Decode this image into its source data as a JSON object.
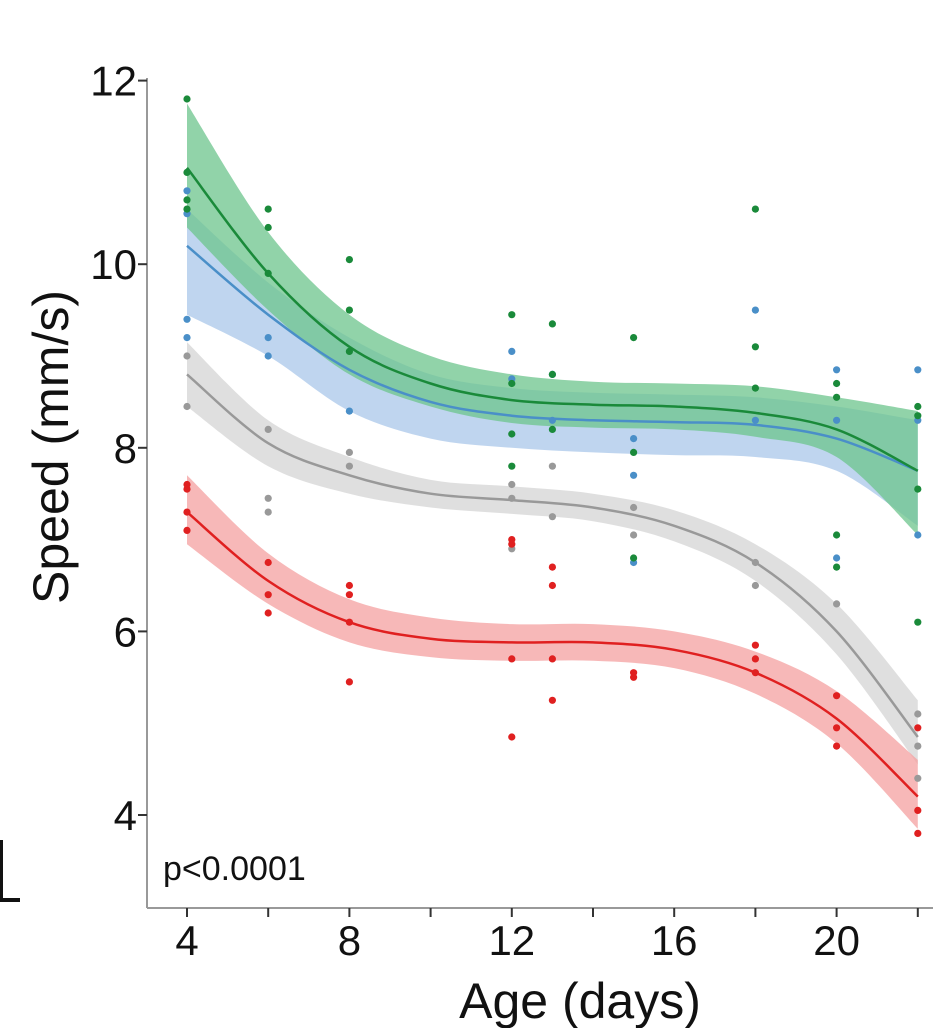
{
  "chart_data": {
    "type": "scatter",
    "title": "",
    "xlabel": "Age (days)",
    "ylabel": "Speed (mm/s)",
    "xlim": [
      3.3,
      22.4
    ],
    "ylim": [
      3.0,
      12.2
    ],
    "xticks": [
      4,
      8,
      12,
      16,
      20
    ],
    "xminor": [
      6,
      10,
      14,
      18,
      22
    ],
    "yticks": [
      4,
      6,
      8,
      10,
      12
    ],
    "annotation": "p<0.0001",
    "grid": false,
    "series": [
      {
        "name": "green",
        "color": "#1a8a3a",
        "band_color": "#6cc48c",
        "points": [
          [
            4,
            11.8
          ],
          [
            4,
            11.0
          ],
          [
            4,
            10.6
          ],
          [
            4,
            10.7
          ],
          [
            6,
            10.6
          ],
          [
            6,
            10.4
          ],
          [
            6,
            9.9
          ],
          [
            8,
            10.05
          ],
          [
            8,
            9.5
          ],
          [
            8,
            9.05
          ],
          [
            12,
            9.45
          ],
          [
            12,
            8.7
          ],
          [
            12,
            8.15
          ],
          [
            12,
            7.8
          ],
          [
            13,
            9.35
          ],
          [
            13,
            8.8
          ],
          [
            13,
            8.2
          ],
          [
            15,
            9.2
          ],
          [
            15,
            7.95
          ],
          [
            15,
            6.8
          ],
          [
            18,
            10.6
          ],
          [
            18,
            9.1
          ],
          [
            18,
            8.65
          ],
          [
            20,
            8.7
          ],
          [
            20,
            8.55
          ],
          [
            20,
            7.05
          ],
          [
            20,
            6.7
          ],
          [
            22,
            8.45
          ],
          [
            22,
            8.35
          ],
          [
            22,
            7.55
          ],
          [
            22,
            6.1
          ]
        ],
        "fit": [
          [
            4,
            11.05
          ],
          [
            6,
            9.9
          ],
          [
            8,
            9.1
          ],
          [
            10,
            8.7
          ],
          [
            12,
            8.52
          ],
          [
            14,
            8.47
          ],
          [
            16,
            8.45
          ],
          [
            18,
            8.38
          ],
          [
            20,
            8.2
          ],
          [
            22,
            7.75
          ]
        ],
        "band_upper": [
          [
            4,
            11.75
          ],
          [
            6,
            10.35
          ],
          [
            8,
            9.45
          ],
          [
            10,
            9.0
          ],
          [
            12,
            8.8
          ],
          [
            14,
            8.72
          ],
          [
            16,
            8.7
          ],
          [
            18,
            8.67
          ],
          [
            20,
            8.55
          ],
          [
            22,
            8.4
          ]
        ],
        "band_lower": [
          [
            4,
            10.4
          ],
          [
            6,
            9.5
          ],
          [
            8,
            8.8
          ],
          [
            10,
            8.45
          ],
          [
            12,
            8.27
          ],
          [
            14,
            8.22
          ],
          [
            16,
            8.2
          ],
          [
            18,
            8.12
          ],
          [
            20,
            7.9
          ],
          [
            22,
            7.05
          ]
        ]
      },
      {
        "name": "blue",
        "color": "#4a8fc8",
        "band_color": "#a9c7ea",
        "points": [
          [
            4,
            10.8
          ],
          [
            4,
            10.55
          ],
          [
            4,
            9.4
          ],
          [
            4,
            9.2
          ],
          [
            6,
            9.2
          ],
          [
            6,
            9.0
          ],
          [
            8,
            8.4
          ],
          [
            12,
            9.05
          ],
          [
            12,
            8.75
          ],
          [
            13,
            8.8
          ],
          [
            13,
            8.3
          ],
          [
            15,
            8.1
          ],
          [
            15,
            7.7
          ],
          [
            15,
            6.75
          ],
          [
            18,
            9.5
          ],
          [
            18,
            8.3
          ],
          [
            20,
            8.85
          ],
          [
            20,
            8.3
          ],
          [
            20,
            6.8
          ],
          [
            22,
            8.85
          ],
          [
            22,
            8.3
          ],
          [
            22,
            7.05
          ]
        ],
        "fit": [
          [
            4,
            10.2
          ],
          [
            6,
            9.45
          ],
          [
            8,
            8.85
          ],
          [
            10,
            8.5
          ],
          [
            12,
            8.35
          ],
          [
            14,
            8.3
          ],
          [
            16,
            8.28
          ],
          [
            18,
            8.25
          ],
          [
            20,
            8.1
          ],
          [
            22,
            7.75
          ]
        ],
        "band_upper": [
          [
            4,
            10.6
          ],
          [
            6,
            9.8
          ],
          [
            8,
            9.2
          ],
          [
            10,
            8.8
          ],
          [
            12,
            8.65
          ],
          [
            14,
            8.6
          ],
          [
            16,
            8.58
          ],
          [
            18,
            8.55
          ],
          [
            20,
            8.45
          ],
          [
            22,
            8.3
          ]
        ],
        "band_lower": [
          [
            4,
            9.45
          ],
          [
            6,
            9.0
          ],
          [
            8,
            8.4
          ],
          [
            10,
            8.1
          ],
          [
            12,
            8.0
          ],
          [
            14,
            7.95
          ],
          [
            16,
            7.92
          ],
          [
            18,
            7.9
          ],
          [
            20,
            7.75
          ],
          [
            22,
            7.15
          ]
        ]
      },
      {
        "name": "gray",
        "color": "#999999",
        "band_color": "#d4d4d4",
        "points": [
          [
            4,
            9.0
          ],
          [
            4,
            8.45
          ],
          [
            6,
            8.2
          ],
          [
            6,
            7.45
          ],
          [
            6,
            7.3
          ],
          [
            8,
            7.95
          ],
          [
            8,
            7.8
          ],
          [
            12,
            7.6
          ],
          [
            12,
            7.45
          ],
          [
            12,
            6.9
          ],
          [
            13,
            7.8
          ],
          [
            13,
            7.25
          ],
          [
            15,
            7.35
          ],
          [
            15,
            7.05
          ],
          [
            18,
            6.75
          ],
          [
            18,
            6.5
          ],
          [
            20,
            6.3
          ],
          [
            22,
            5.1
          ],
          [
            22,
            4.75
          ],
          [
            22,
            4.4
          ]
        ],
        "fit": [
          [
            4,
            8.8
          ],
          [
            6,
            8.05
          ],
          [
            8,
            7.7
          ],
          [
            10,
            7.5
          ],
          [
            12,
            7.43
          ],
          [
            14,
            7.35
          ],
          [
            16,
            7.15
          ],
          [
            18,
            6.75
          ],
          [
            20,
            6.0
          ],
          [
            22,
            4.85
          ]
        ],
        "band_upper": [
          [
            4,
            9.15
          ],
          [
            6,
            8.3
          ],
          [
            8,
            7.9
          ],
          [
            10,
            7.65
          ],
          [
            12,
            7.58
          ],
          [
            14,
            7.5
          ],
          [
            16,
            7.32
          ],
          [
            18,
            6.95
          ],
          [
            20,
            6.3
          ],
          [
            22,
            5.25
          ]
        ],
        "band_lower": [
          [
            4,
            8.45
          ],
          [
            6,
            7.8
          ],
          [
            8,
            7.5
          ],
          [
            10,
            7.35
          ],
          [
            12,
            7.28
          ],
          [
            14,
            7.2
          ],
          [
            16,
            6.98
          ],
          [
            18,
            6.55
          ],
          [
            20,
            5.75
          ],
          [
            22,
            4.55
          ]
        ]
      },
      {
        "name": "red",
        "color": "#e02020",
        "band_color": "#f4a0a0",
        "points": [
          [
            4,
            7.6
          ],
          [
            4,
            7.55
          ],
          [
            4,
            7.3
          ],
          [
            4,
            7.1
          ],
          [
            6,
            6.75
          ],
          [
            6,
            6.4
          ],
          [
            6,
            6.2
          ],
          [
            8,
            6.5
          ],
          [
            8,
            6.4
          ],
          [
            8,
            6.1
          ],
          [
            8,
            5.45
          ],
          [
            12,
            7.0
          ],
          [
            12,
            6.95
          ],
          [
            12,
            5.7
          ],
          [
            12,
            4.85
          ],
          [
            13,
            6.7
          ],
          [
            13,
            6.5
          ],
          [
            13,
            5.7
          ],
          [
            13,
            5.25
          ],
          [
            15,
            5.55
          ],
          [
            15,
            5.5
          ],
          [
            18,
            5.85
          ],
          [
            18,
            5.7
          ],
          [
            18,
            5.55
          ],
          [
            20,
            5.3
          ],
          [
            20,
            4.95
          ],
          [
            20,
            4.75
          ],
          [
            22,
            4.95
          ],
          [
            22,
            4.05
          ],
          [
            22,
            3.8
          ]
        ],
        "fit": [
          [
            4,
            7.3
          ],
          [
            6,
            6.55
          ],
          [
            8,
            6.1
          ],
          [
            10,
            5.92
          ],
          [
            12,
            5.88
          ],
          [
            14,
            5.88
          ],
          [
            16,
            5.8
          ],
          [
            18,
            5.55
          ],
          [
            20,
            5.05
          ],
          [
            22,
            4.2
          ]
        ],
        "band_upper": [
          [
            4,
            7.7
          ],
          [
            6,
            6.85
          ],
          [
            8,
            6.35
          ],
          [
            10,
            6.15
          ],
          [
            12,
            6.08
          ],
          [
            14,
            6.08
          ],
          [
            16,
            6.0
          ],
          [
            18,
            5.78
          ],
          [
            20,
            5.35
          ],
          [
            22,
            4.6
          ]
        ],
        "band_lower": [
          [
            4,
            6.95
          ],
          [
            6,
            6.3
          ],
          [
            8,
            5.88
          ],
          [
            10,
            5.72
          ],
          [
            12,
            5.68
          ],
          [
            14,
            5.68
          ],
          [
            16,
            5.6
          ],
          [
            18,
            5.32
          ],
          [
            20,
            4.78
          ],
          [
            22,
            3.85
          ]
        ]
      }
    ]
  }
}
